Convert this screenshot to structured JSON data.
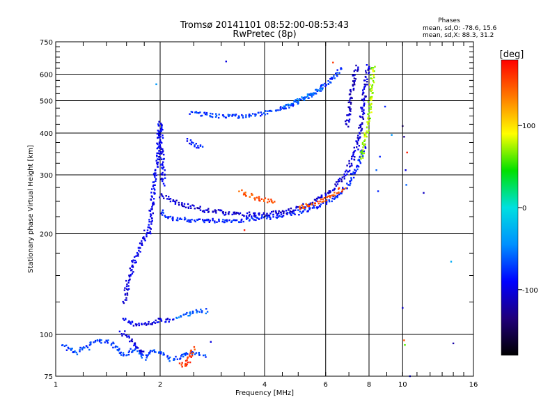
{
  "chart_data": {
    "type": "scatter",
    "title": "Tromsø 20141101 08:52:00-08:53:43",
    "subtitle": "RwPretec (8p)",
    "stats": {
      "heading": "Phases",
      "o_line": "mean, sd,O: -78.6, 15.6",
      "x_line": "mean, sd,X:  88.3, 31.2"
    },
    "xlabel": "Frequency [MHz]",
    "ylabel": "Stationary phase Virtual Height [km]",
    "x_scale": "log",
    "y_scale": "log",
    "xlim": [
      1,
      16
    ],
    "ylim": [
      75,
      750
    ],
    "x_ticks": [
      1,
      2,
      4,
      6,
      8,
      10,
      16
    ],
    "x_grid": [
      2,
      4,
      6,
      8,
      10
    ],
    "y_ticks": [
      75,
      100,
      200,
      300,
      400,
      500,
      600,
      750
    ],
    "y_grid": [
      100,
      200,
      300,
      400,
      500,
      600
    ],
    "colorbar": {
      "label": "[deg]",
      "range": [
        -180,
        180
      ],
      "ticks": [
        100,
        0,
        -100
      ],
      "colors": [
        "#ff0000",
        "#ff7a00",
        "#ffff00",
        "#00e000",
        "#00e0e0",
        "#0090ff",
        "#0000ff",
        "#20007a",
        "#000000"
      ]
    },
    "series": [
      {
        "phase": -95,
        "points": [
          [
            1.85,
            200
          ],
          [
            1.87,
            215
          ],
          [
            1.89,
            235
          ],
          [
            1.9,
            255
          ],
          [
            1.92,
            270
          ],
          [
            1.93,
            290
          ],
          [
            1.95,
            310
          ],
          [
            1.96,
            330
          ],
          [
            1.97,
            355
          ],
          [
            1.98,
            380
          ],
          [
            1.99,
            405
          ],
          [
            2.0,
            430
          ],
          [
            2.01,
            390
          ],
          [
            2.02,
            360
          ],
          [
            2.03,
            330
          ],
          [
            2.04,
            300
          ],
          [
            2.05,
            280
          ]
        ]
      },
      {
        "phase": -100,
        "points": [
          [
            1.58,
            125
          ],
          [
            1.6,
            135
          ],
          [
            1.62,
            145
          ],
          [
            1.65,
            155
          ],
          [
            1.68,
            165
          ],
          [
            1.72,
            175
          ],
          [
            1.76,
            185
          ],
          [
            1.8,
            195
          ],
          [
            1.83,
            205
          ]
        ]
      },
      {
        "phase": -95,
        "points": [
          [
            1.57,
            112
          ],
          [
            1.6,
            110
          ],
          [
            1.65,
            108
          ],
          [
            1.7,
            107
          ],
          [
            1.78,
            107
          ],
          [
            1.86,
            108
          ],
          [
            1.93,
            109
          ],
          [
            2.0,
            110
          ],
          [
            2.1,
            110
          ],
          [
            2.2,
            111
          ]
        ]
      },
      {
        "phase": -60,
        "points": [
          [
            2.25,
            112
          ],
          [
            2.35,
            114
          ],
          [
            2.45,
            116
          ],
          [
            2.55,
            117
          ],
          [
            2.65,
            118
          ],
          [
            2.75,
            117
          ]
        ]
      },
      {
        "phase": -80,
        "points": [
          [
            2.0,
            235
          ],
          [
            2.05,
            228
          ],
          [
            2.1,
            224
          ],
          [
            2.2,
            221
          ],
          [
            2.4,
            220
          ],
          [
            2.7,
            219
          ],
          [
            3.0,
            219
          ],
          [
            3.3,
            219
          ],
          [
            3.7,
            221
          ],
          [
            4.0,
            223
          ],
          [
            4.4,
            226
          ],
          [
            4.8,
            229
          ],
          [
            5.2,
            234
          ],
          [
            5.6,
            240
          ],
          [
            6.0,
            248
          ],
          [
            6.4,
            258
          ],
          [
            6.8,
            272
          ],
          [
            7.1,
            290
          ],
          [
            7.4,
            315
          ],
          [
            7.6,
            340
          ],
          [
            7.8,
            370
          ]
        ]
      },
      {
        "phase": -105,
        "points": [
          [
            2.0,
            260
          ],
          [
            2.3,
            245
          ],
          [
            2.7,
            235
          ],
          [
            3.2,
            230
          ],
          [
            3.8,
            228
          ],
          [
            4.4,
            231
          ],
          [
            5.0,
            238
          ],
          [
            5.6,
            250
          ],
          [
            6.1,
            265
          ],
          [
            6.5,
            282
          ],
          [
            6.9,
            305
          ],
          [
            7.2,
            335
          ],
          [
            7.4,
            370
          ],
          [
            7.55,
            410
          ],
          [
            7.65,
            460
          ],
          [
            7.75,
            520
          ],
          [
            7.85,
            580
          ],
          [
            7.95,
            640
          ]
        ]
      },
      {
        "phase": -110,
        "points": [
          [
            6.9,
            420
          ],
          [
            7.0,
            470
          ],
          [
            7.1,
            520
          ],
          [
            7.2,
            570
          ],
          [
            7.3,
            610
          ],
          [
            7.4,
            640
          ]
        ]
      },
      {
        "phase": 150,
        "points": [
          [
            5.0,
            240
          ],
          [
            5.3,
            243
          ],
          [
            5.6,
            247
          ],
          [
            5.9,
            252
          ],
          [
            6.2,
            258
          ],
          [
            6.5,
            266
          ],
          [
            6.8,
            278
          ]
        ]
      },
      {
        "phase": 150,
        "points": [
          [
            3.4,
            268
          ],
          [
            3.7,
            258
          ],
          [
            4.0,
            252
          ],
          [
            4.3,
            250
          ]
        ]
      },
      {
        "phase": 75,
        "points": [
          [
            7.6,
            335
          ],
          [
            7.7,
            360
          ],
          [
            7.8,
            385
          ],
          [
            7.9,
            410
          ],
          [
            8.0,
            440
          ],
          [
            8.05,
            480
          ],
          [
            8.1,
            520
          ],
          [
            8.15,
            560
          ],
          [
            8.2,
            600
          ],
          [
            8.25,
            640
          ]
        ]
      },
      {
        "phase": -75,
        "points": [
          [
            2.45,
            460
          ],
          [
            2.7,
            455
          ],
          [
            3.0,
            450
          ],
          [
            3.3,
            448
          ],
          [
            3.6,
            452
          ],
          [
            4.0,
            460
          ],
          [
            4.4,
            470
          ],
          [
            4.8,
            485
          ],
          [
            5.2,
            505
          ],
          [
            5.6,
            530
          ],
          [
            6.0,
            560
          ],
          [
            6.4,
            595
          ],
          [
            6.7,
            625
          ]
        ]
      },
      {
        "phase": -55,
        "points": [
          [
            4.5,
            480
          ],
          [
            5.0,
            500
          ],
          [
            5.5,
            525
          ],
          [
            6.0,
            555
          ]
        ]
      },
      {
        "phase": -85,
        "points": [
          [
            2.4,
            385
          ],
          [
            2.45,
            375
          ],
          [
            2.55,
            365
          ],
          [
            2.65,
            360
          ]
        ]
      },
      {
        "phase": -70,
        "points": [
          [
            1.05,
            92
          ],
          [
            1.15,
            88
          ],
          [
            1.3,
            96
          ],
          [
            1.4,
            95
          ],
          [
            1.5,
            92
          ],
          [
            1.55,
            86
          ],
          [
            1.6,
            88
          ],
          [
            1.7,
            90
          ],
          [
            1.8,
            85
          ],
          [
            1.9,
            90
          ],
          [
            2.0,
            88
          ],
          [
            2.15,
            84
          ],
          [
            2.3,
            86
          ],
          [
            2.5,
            88
          ],
          [
            2.7,
            86
          ]
        ]
      },
      {
        "phase": 160,
        "points": [
          [
            2.3,
            82
          ],
          [
            2.35,
            80
          ],
          [
            2.4,
            83
          ],
          [
            2.45,
            87
          ],
          [
            2.5,
            92
          ]
        ]
      },
      {
        "phase": -100,
        "points": [
          [
            1.55,
            102
          ],
          [
            1.6,
            99
          ],
          [
            1.65,
            96
          ],
          [
            1.7,
            93
          ],
          [
            1.75,
            90
          ],
          [
            1.8,
            88
          ]
        ]
      }
    ],
    "scatter_points": [
      [
        3.1,
        655,
        -100
      ],
      [
        6.3,
        650,
        160
      ],
      [
        10.0,
        420,
        -150
      ],
      [
        10.1,
        390,
        -130
      ],
      [
        10.2,
        310,
        -100
      ],
      [
        10.25,
        280,
        -60
      ],
      [
        10.3,
        350,
        170
      ],
      [
        10.0,
        120,
        -110
      ],
      [
        10.1,
        96,
        150
      ],
      [
        10.15,
        93,
        60
      ],
      [
        10.5,
        75,
        -90
      ],
      [
        11.5,
        265,
        -110
      ],
      [
        13.8,
        165,
        -30
      ],
      [
        14.0,
        94,
        -120
      ],
      [
        3.5,
        205,
        170
      ],
      [
        8.5,
        268,
        -80
      ],
      [
        8.9,
        480,
        -80
      ],
      [
        9.3,
        395,
        -40
      ],
      [
        4.0,
        225,
        -150
      ],
      [
        2.8,
        95,
        -100
      ],
      [
        1.25,
        90,
        -60
      ],
      [
        1.95,
        560,
        -40
      ],
      [
        8.4,
        310,
        -60
      ],
      [
        8.6,
        340,
        -80
      ]
    ]
  }
}
